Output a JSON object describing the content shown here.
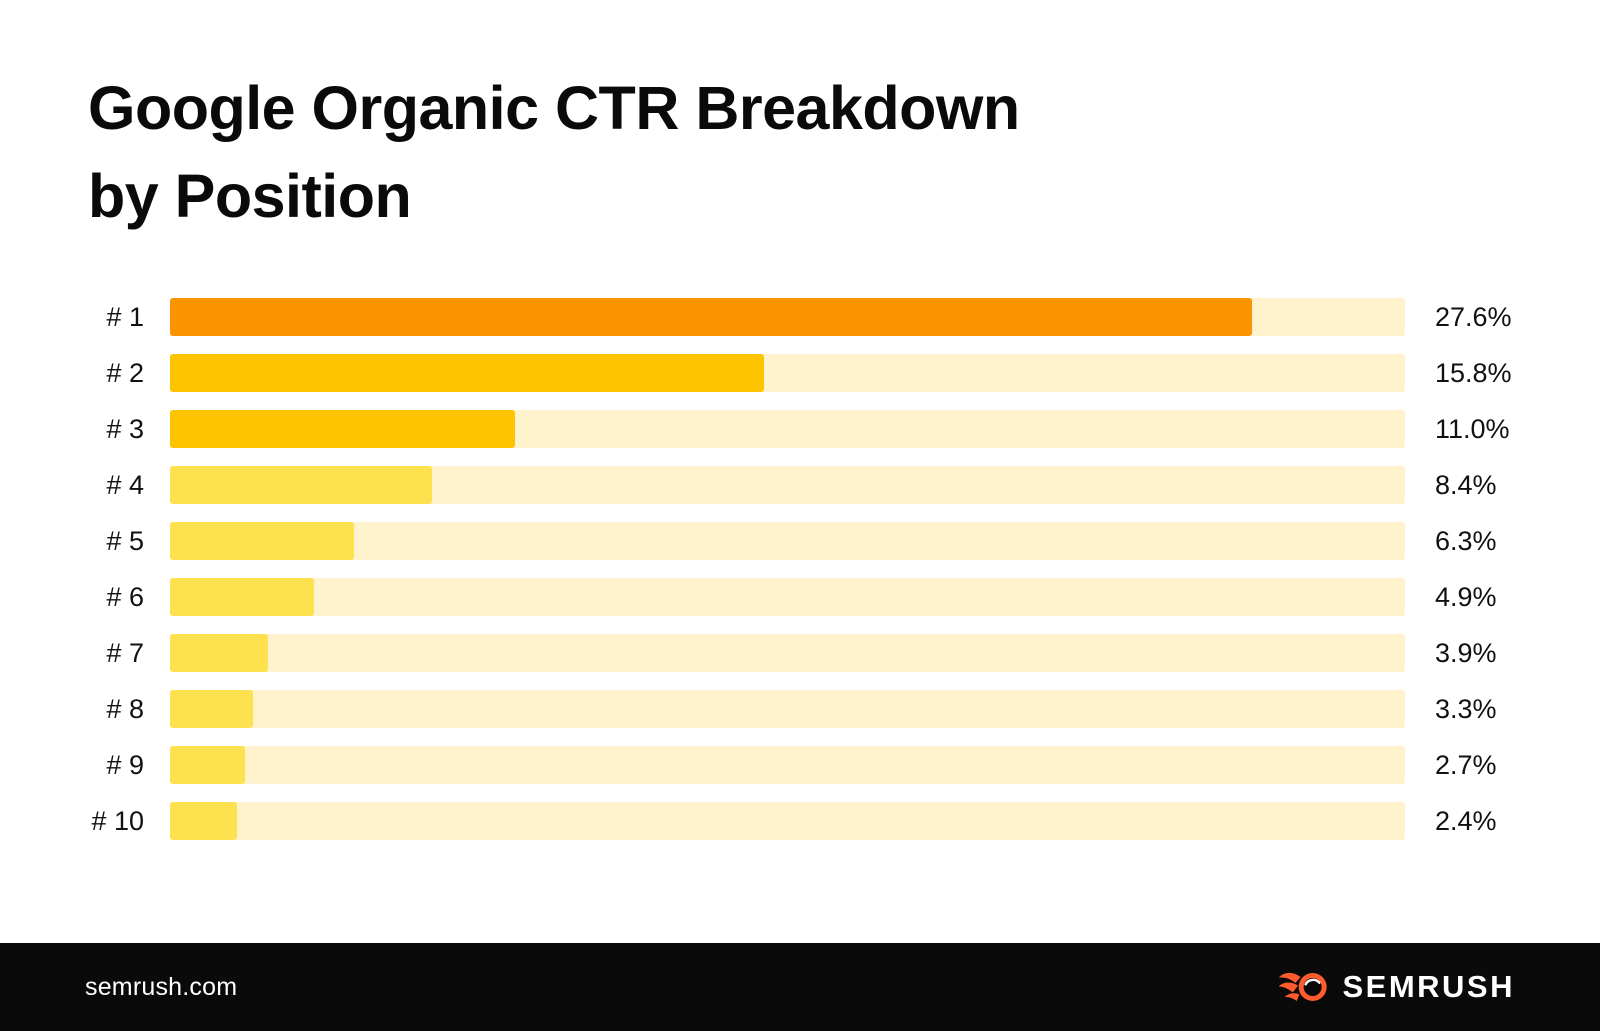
{
  "title": {
    "line1": "Google Organic CTR Breakdown",
    "line2": "by Position"
  },
  "chart_data": {
    "type": "bar",
    "orientation": "horizontal",
    "title": "Google Organic CTR Breakdown by Position",
    "categories": [
      "# 1",
      "# 2",
      "# 3",
      "# 4",
      "# 5",
      "# 6",
      "# 7",
      "# 8",
      "# 9",
      "# 10"
    ],
    "values": [
      27.6,
      15.8,
      11.0,
      8.4,
      6.3,
      4.9,
      3.9,
      3.3,
      2.7,
      2.4
    ],
    "value_labels": [
      "27.6%",
      "15.8%",
      "11.0%",
      "8.4%",
      "6.3%",
      "4.9%",
      "3.9%",
      "3.3%",
      "2.7%",
      "2.4%"
    ],
    "xlabel": "",
    "ylabel": "",
    "legend": false,
    "grid": false,
    "layout": {
      "track_color": "#FEF3CC",
      "bar_colors": [
        "#FA9400",
        "#FFC400",
        "#FFC400",
        "#FEE14E",
        "#FEE14E",
        "#FEE14E",
        "#FEE14E",
        "#FEE14E",
        "#FEE14E",
        "#FEE14E"
      ],
      "bar_fill_fractions": [
        0.876,
        0.481,
        0.279,
        0.212,
        0.149,
        0.117,
        0.079,
        0.067,
        0.061,
        0.054
      ]
    }
  },
  "footer": {
    "url": "semrush.com",
    "brand": "SEMRUSH",
    "accent_color": "#FF5B2D",
    "background_color": "#0A0A0A"
  }
}
